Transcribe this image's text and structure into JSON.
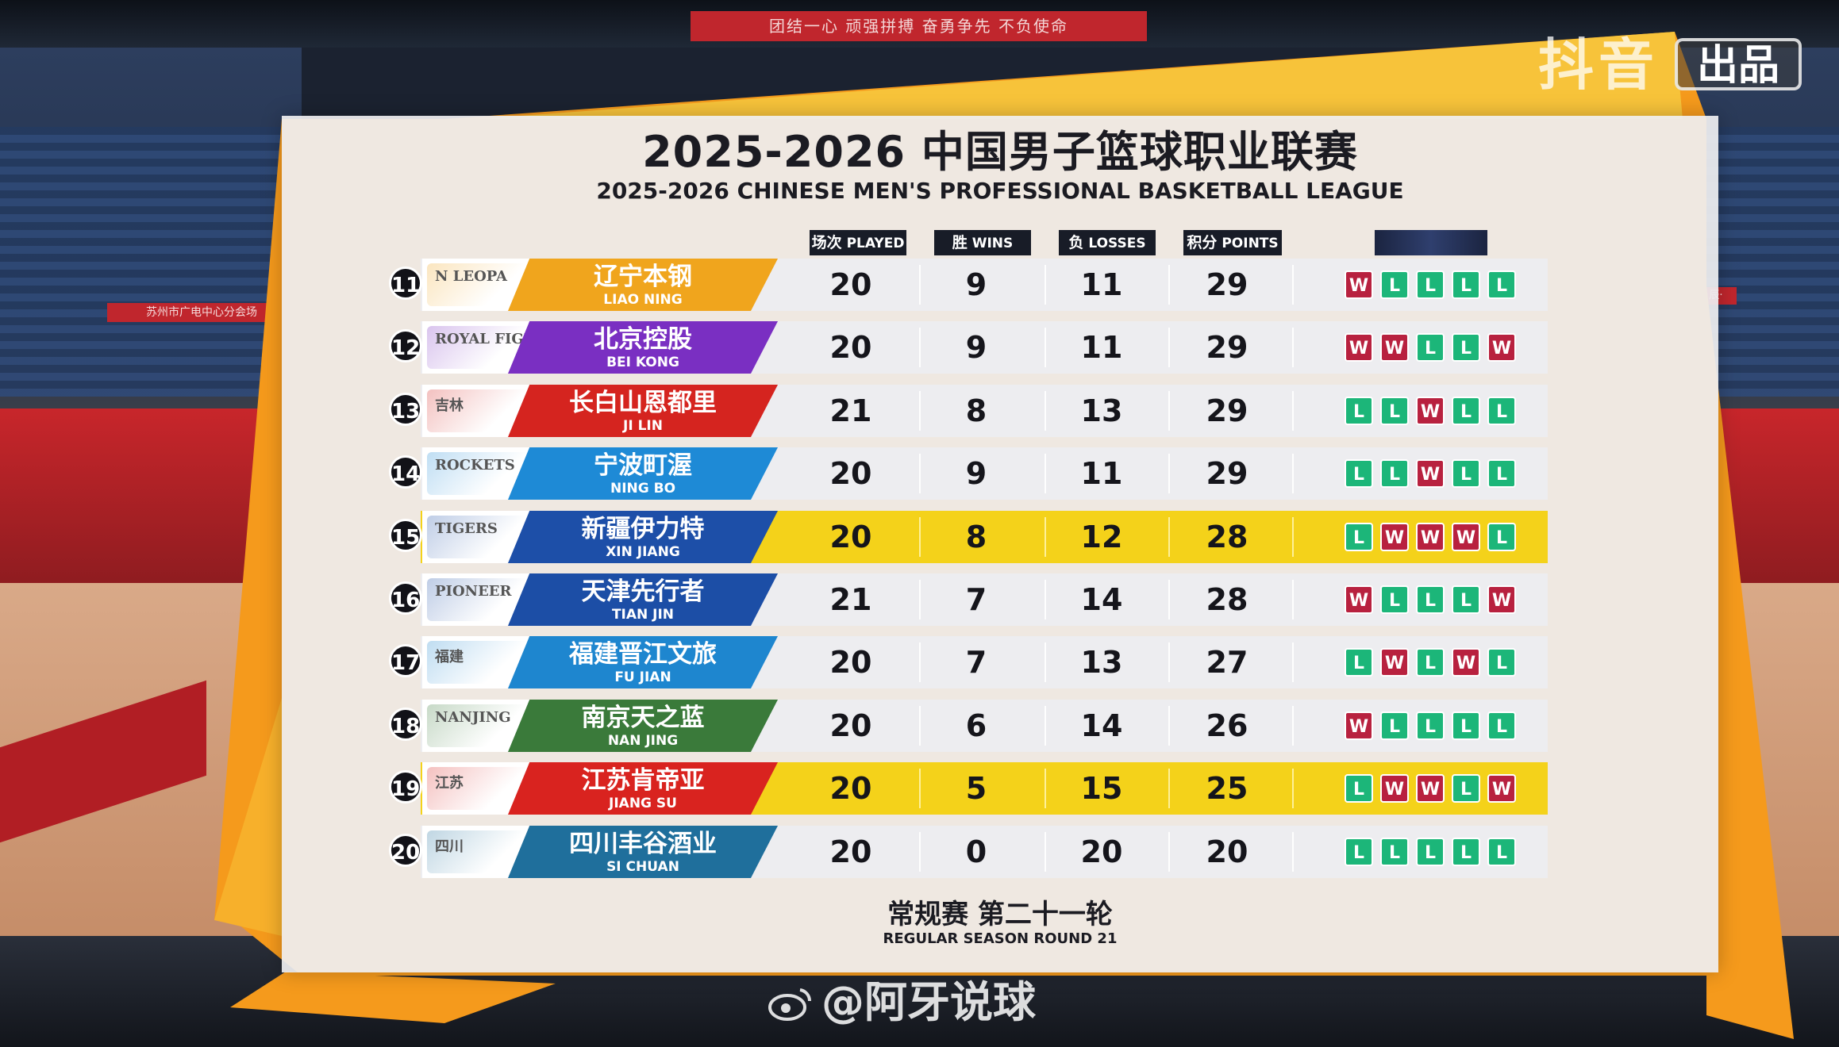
{
  "banners": {
    "top": "团结一心  顽强拼搏  奋勇争先  不负使命",
    "left": "苏州市广电中心分会场",
    "right": "辰·"
  },
  "brand": {
    "douyin": "抖音",
    "badge": "出品"
  },
  "watermark": "@阿牙说球",
  "header": {
    "title_zh": "2025-2026 中国男子篮球职业联赛",
    "title_en": "2025-2026 CHINESE MEN'S PROFESSIONAL BASKETBALL LEAGUE"
  },
  "columns": [
    {
      "zh": "场次",
      "en": "PLAYED"
    },
    {
      "zh": "胜",
      "en": "WINS"
    },
    {
      "zh": "负",
      "en": "LOSSES"
    },
    {
      "zh": "积分",
      "en": "POINTS"
    }
  ],
  "colors": {
    "win": "#b8213f",
    "loss": "#1cb679",
    "highlight": "#f4d21a",
    "orange": "#f59a1c"
  },
  "teams": [
    {
      "rank": "11",
      "zh": "辽宁本钢",
      "en": "LIAO NING",
      "logo": "N LEOPA",
      "color": "#f0a51d",
      "played": "20",
      "wins": "9",
      "losses": "11",
      "points": "29",
      "form": [
        "W",
        "L",
        "L",
        "L",
        "L"
      ],
      "highlight": false
    },
    {
      "rank": "12",
      "zh": "北京控股",
      "en": "BEI KONG",
      "logo": "ROYAL FIGHTERS",
      "color": "#7a2fc2",
      "played": "20",
      "wins": "9",
      "losses": "11",
      "points": "29",
      "form": [
        "W",
        "W",
        "L",
        "L",
        "W"
      ],
      "highlight": false
    },
    {
      "rank": "13",
      "zh": "长白山恩都里",
      "en": "JI LIN",
      "logo": "吉林",
      "color": "#d5241f",
      "played": "21",
      "wins": "8",
      "losses": "13",
      "points": "29",
      "form": [
        "L",
        "L",
        "W",
        "L",
        "L"
      ],
      "highlight": false
    },
    {
      "rank": "14",
      "zh": "宁波町渥",
      "en": "NING BO",
      "logo": "ROCKETS",
      "color": "#1e8ad6",
      "played": "20",
      "wins": "9",
      "losses": "11",
      "points": "29",
      "form": [
        "L",
        "L",
        "W",
        "L",
        "L"
      ],
      "highlight": false
    },
    {
      "rank": "15",
      "zh": "新疆伊力特",
      "en": "XIN JIANG",
      "logo": "TIGERS",
      "color": "#1d4fa8",
      "played": "20",
      "wins": "8",
      "losses": "12",
      "points": "28",
      "form": [
        "L",
        "W",
        "W",
        "W",
        "L"
      ],
      "highlight": true
    },
    {
      "rank": "16",
      "zh": "天津先行者",
      "en": "TIAN JIN",
      "logo": "PIONEER",
      "color": "#1c4ea6",
      "played": "21",
      "wins": "7",
      "losses": "14",
      "points": "28",
      "form": [
        "W",
        "L",
        "L",
        "L",
        "W"
      ],
      "highlight": false
    },
    {
      "rank": "17",
      "zh": "福建晋江文旅",
      "en": "FU JIAN",
      "logo": "福建",
      "color": "#1e86cf",
      "played": "20",
      "wins": "7",
      "losses": "13",
      "points": "27",
      "form": [
        "L",
        "W",
        "L",
        "W",
        "L"
      ],
      "highlight": false
    },
    {
      "rank": "18",
      "zh": "南京天之蓝",
      "en": "NAN JING",
      "logo": "NANJING",
      "color": "#3a7a3a",
      "played": "20",
      "wins": "6",
      "losses": "14",
      "points": "26",
      "form": [
        "W",
        "L",
        "L",
        "L",
        "L"
      ],
      "highlight": false
    },
    {
      "rank": "19",
      "zh": "江苏肯帝亚",
      "en": "JIANG SU",
      "logo": "江苏",
      "color": "#d9231f",
      "played": "20",
      "wins": "5",
      "losses": "15",
      "points": "25",
      "form": [
        "L",
        "W",
        "W",
        "L",
        "W"
      ],
      "highlight": true
    },
    {
      "rank": "20",
      "zh": "四川丰谷酒业",
      "en": "SI CHUAN",
      "logo": "四川",
      "color": "#1f6f9c",
      "played": "20",
      "wins": "0",
      "losses": "20",
      "points": "20",
      "form": [
        "L",
        "L",
        "L",
        "L",
        "L"
      ],
      "highlight": false
    }
  ],
  "footer": {
    "round_zh": "常规赛  第二十一轮",
    "round_en": "REGULAR SEASON ROUND 21"
  }
}
